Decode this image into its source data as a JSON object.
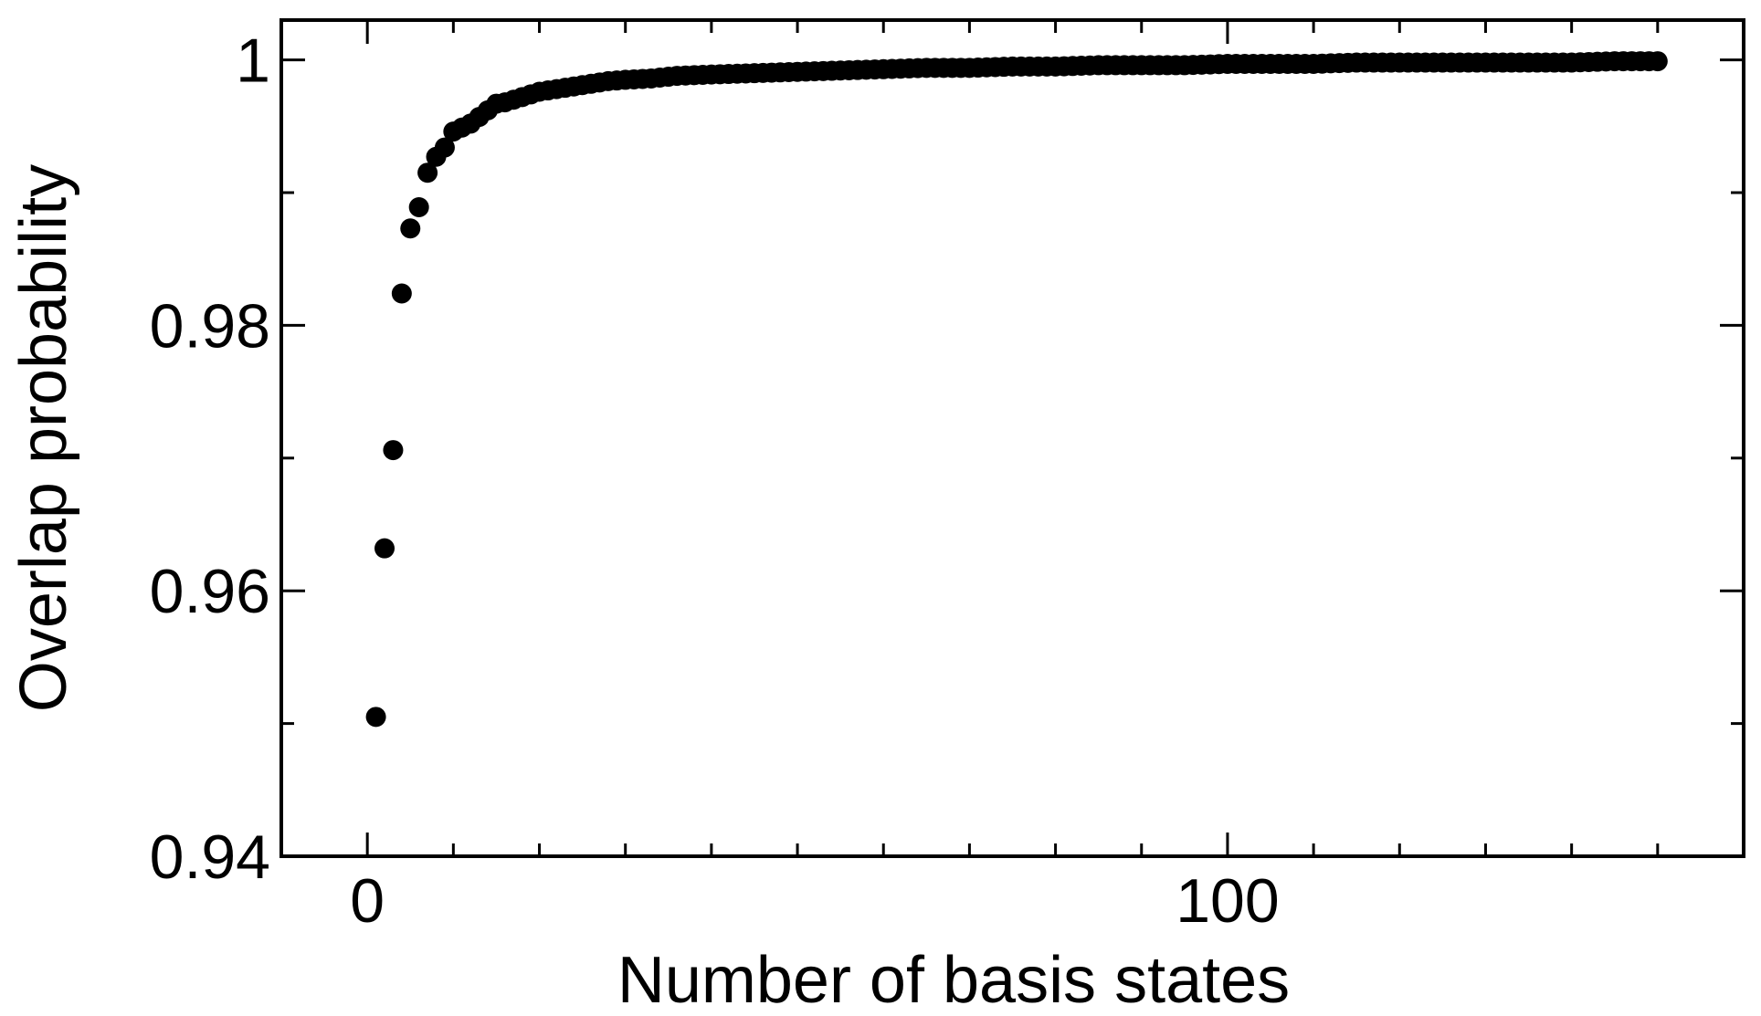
{
  "chart_data": {
    "type": "scatter",
    "title": "",
    "xlabel": "Number of basis states",
    "ylabel": "Overlap probability",
    "xlim": [
      -10,
      160
    ],
    "ylim": [
      0.94,
      1.003
    ],
    "x_ticks_major": [
      0,
      100
    ],
    "x_tick_labels": [
      "0",
      "100"
    ],
    "x_ticks_minor_step": 10,
    "y_ticks_major": [
      0.94,
      0.96,
      0.98,
      1.0
    ],
    "y_tick_labels": [
      "0.94",
      "0.96",
      "0.98",
      "1"
    ],
    "y_ticks_minor": [
      0.95,
      0.97,
      0.99
    ],
    "grid": false,
    "legend": "none",
    "marker_color": "#000000",
    "points": [
      [
        1,
        0.9505
      ],
      [
        2,
        0.9632
      ],
      [
        3,
        0.9706
      ],
      [
        4,
        0.9824
      ],
      [
        5,
        0.9873
      ],
      [
        6,
        0.9889
      ],
      [
        7,
        0.9915
      ],
      [
        8,
        0.9927
      ],
      [
        9,
        0.9934
      ],
      [
        10,
        0.9946
      ],
      [
        11,
        0.9949
      ],
      [
        12,
        0.9952
      ],
      [
        13,
        0.9957
      ],
      [
        14,
        0.9962
      ],
      [
        15,
        0.9967
      ],
      [
        16,
        0.9968
      ],
      [
        17,
        0.997
      ],
      [
        18,
        0.9972
      ],
      [
        19,
        0.9974
      ],
      [
        20,
        0.9976
      ],
      [
        22,
        0.9978
      ],
      [
        24,
        0.998
      ],
      [
        26,
        0.9982
      ],
      [
        28,
        0.9984
      ],
      [
        30,
        0.9985
      ],
      [
        33,
        0.9986
      ],
      [
        36,
        0.9988
      ],
      [
        40,
        0.9989
      ],
      [
        45,
        0.999
      ],
      [
        50,
        0.9991
      ],
      [
        55,
        0.9992
      ],
      [
        60,
        0.9993
      ],
      [
        65,
        0.9994
      ],
      [
        70,
        0.9994
      ],
      [
        75,
        0.9995
      ],
      [
        80,
        0.9995
      ],
      [
        85,
        0.9996
      ],
      [
        90,
        0.9996
      ],
      [
        95,
        0.9996
      ],
      [
        100,
        0.9997
      ],
      [
        105,
        0.9997
      ],
      [
        110,
        0.9997
      ],
      [
        115,
        0.9998
      ],
      [
        120,
        0.9998
      ],
      [
        125,
        0.9998
      ],
      [
        130,
        0.9998
      ],
      [
        135,
        0.9998
      ],
      [
        140,
        0.9998
      ],
      [
        145,
        0.9999
      ],
      [
        150,
        0.9999
      ]
    ]
  }
}
